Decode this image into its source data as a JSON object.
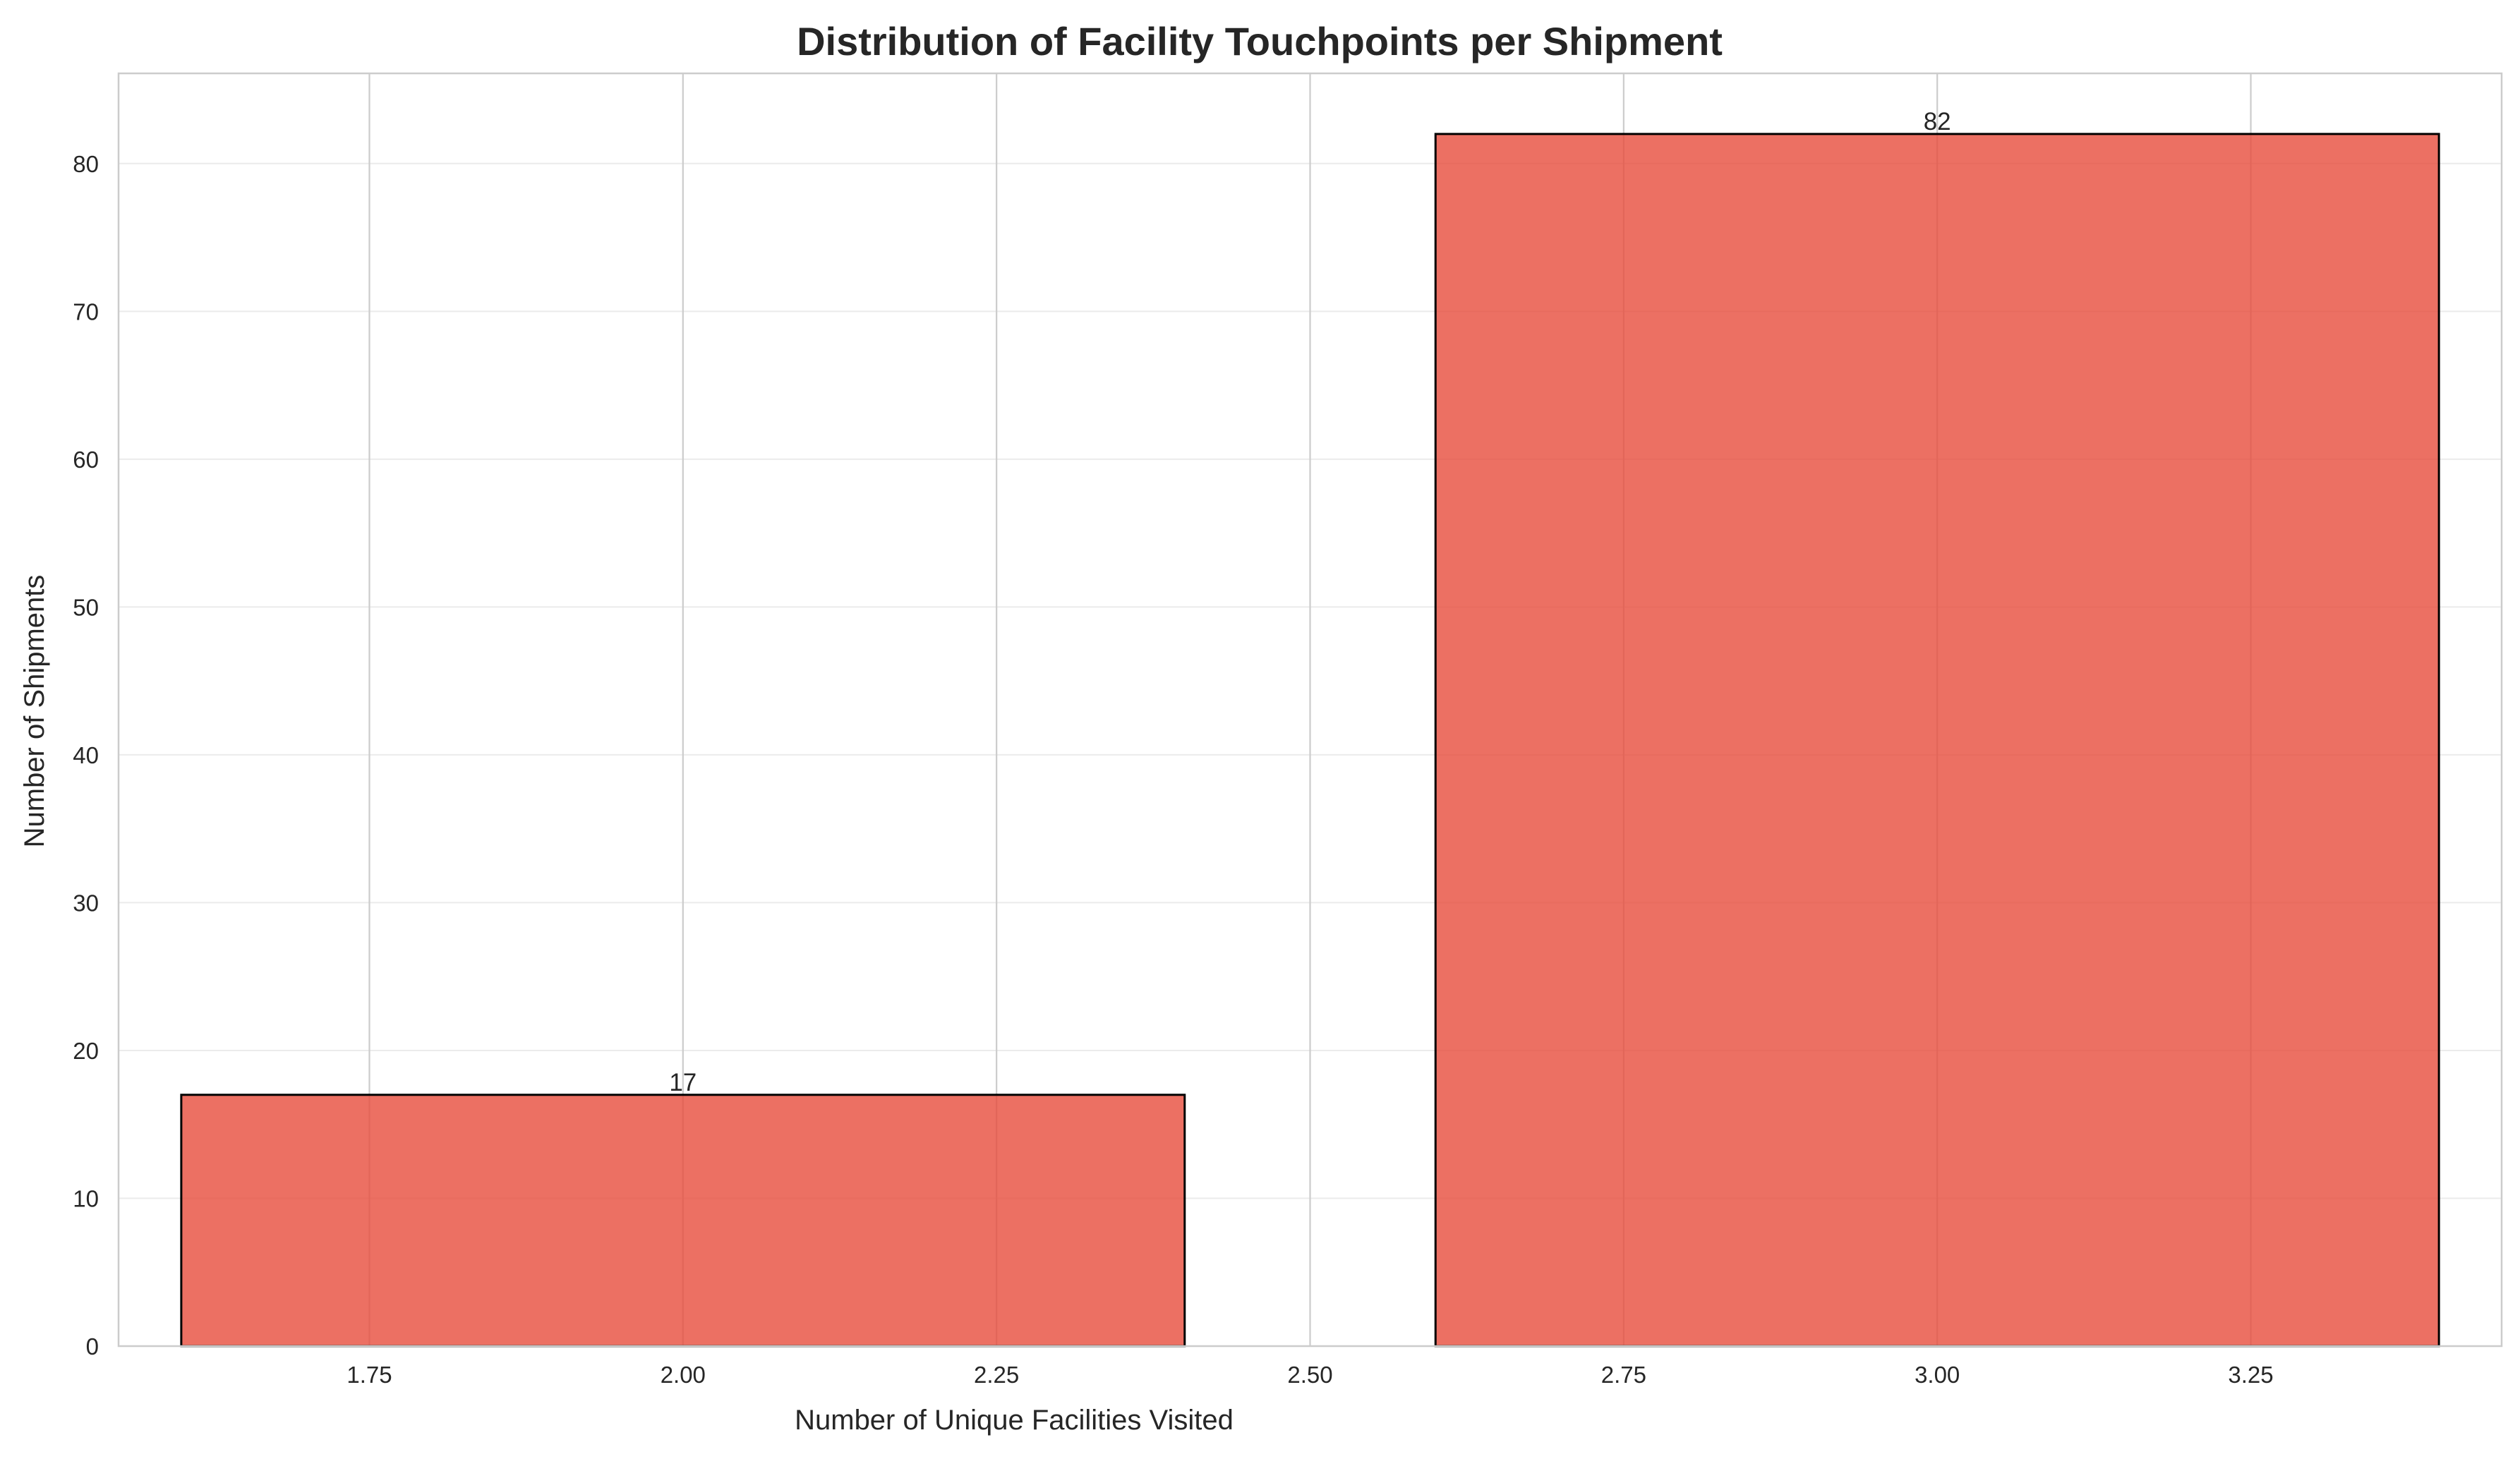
{
  "chart_data": {
    "type": "bar",
    "title": "Distribution of Facility Touchpoints per Shipment",
    "xlabel": "Number of Unique Facilities Visited",
    "ylabel": "Number of Shipments",
    "bars": [
      {
        "x": 2,
        "value": 17,
        "label": "17"
      },
      {
        "x": 3,
        "value": 82,
        "label": "82"
      }
    ],
    "bar_width": 0.8,
    "xlim": [
      1.55,
      3.45
    ],
    "ylim": [
      0,
      86.1
    ],
    "xticks": [
      {
        "value": 1.75,
        "label": "1.75"
      },
      {
        "value": 2.0,
        "label": "2.00"
      },
      {
        "value": 2.25,
        "label": "2.25"
      },
      {
        "value": 2.5,
        "label": "2.50"
      },
      {
        "value": 2.75,
        "label": "2.75"
      },
      {
        "value": 3.0,
        "label": "3.00"
      },
      {
        "value": 3.25,
        "label": "3.25"
      }
    ],
    "yticks": [
      {
        "value": 0,
        "label": "0"
      },
      {
        "value": 10,
        "label": "10"
      },
      {
        "value": 20,
        "label": "20"
      },
      {
        "value": 30,
        "label": "30"
      },
      {
        "value": 40,
        "label": "40"
      },
      {
        "value": 50,
        "label": "50"
      },
      {
        "value": 60,
        "label": "60"
      },
      {
        "value": 70,
        "label": "70"
      },
      {
        "value": 80,
        "label": "80"
      }
    ],
    "grid": true,
    "legend": "none",
    "colors": {
      "bar_fill": "#e74c3c",
      "bar_opacity": 0.8,
      "bar_edge": "#000000",
      "grid_x": "#cccccc",
      "grid_y": "#ebebeb",
      "spine": "#cccccc"
    }
  }
}
